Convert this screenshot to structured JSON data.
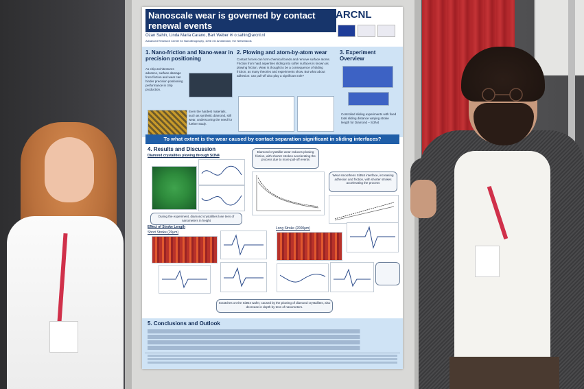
{
  "poster": {
    "title": "Nanoscale wear is governed by contact renewal events",
    "authors": "Ozan Sahin, Linda Maria Carano, Bart Weber ✉ o.sahin@arcnl.nl",
    "affiliation": "Advanced Research Center for Nanolithography, 1098 XG Amsterdam, the Netherlands",
    "logo_text": "ARCNL",
    "section1": {
      "heading": "1. Nano-friction and Nano-wear in precision positioning",
      "body": "As chip architectures advance, surface damage from friction and wear can hinder precision positioning performance in chip production.",
      "body2": "Even the hardest materials, such as synthetic diamond, still wear, underscoring the need for further study."
    },
    "section2": {
      "heading": "2. Plowing and atom-by-atom wear",
      "body": "Contact forces can form chemical bonds and remove surface atoms. Friction from hard asperities sliding into softer surfaces is known as plowing friction. Wear is thought to be a consequence of sliding friction, as many theories and experiments show. But what about adhesion: can pull-off also play a significant role?"
    },
    "section3": {
      "heading": "3. Experiment Overview",
      "body": "Controlled sliding experiments with fixed total sliding distance varying stroke length for Diamond – Si3N4"
    },
    "question": "To what extent is the wear caused by contact separation significant in sliding interfaces?",
    "section4": {
      "heading": "4. Results and Discussion",
      "sub1": "Diamond crystallites plowing through Si3N4",
      "callout1": "Diamond crystallite wear reduces plowing friction, with shorter strokes accelerating the process due to more pull-off events",
      "callout2": "Wear smoothens Si3N4 interface, increasing adhesion and friction, with shorter strokes accelerating the process",
      "caption1": "During the experiment, diamond crystallites lose tens of nanometers in height",
      "sub2": "Effect of Stroke Length",
      "short": "Short Stroke (20μm)",
      "long": "Long Stroke (2000μm)",
      "caption2": "Scratches on the Si3N4 wafer, caused by the plowing of diamond crystallites, also decrease in depth by tens of nanometers."
    },
    "section5": {
      "heading": "5. Conclusions and Outlook"
    }
  }
}
